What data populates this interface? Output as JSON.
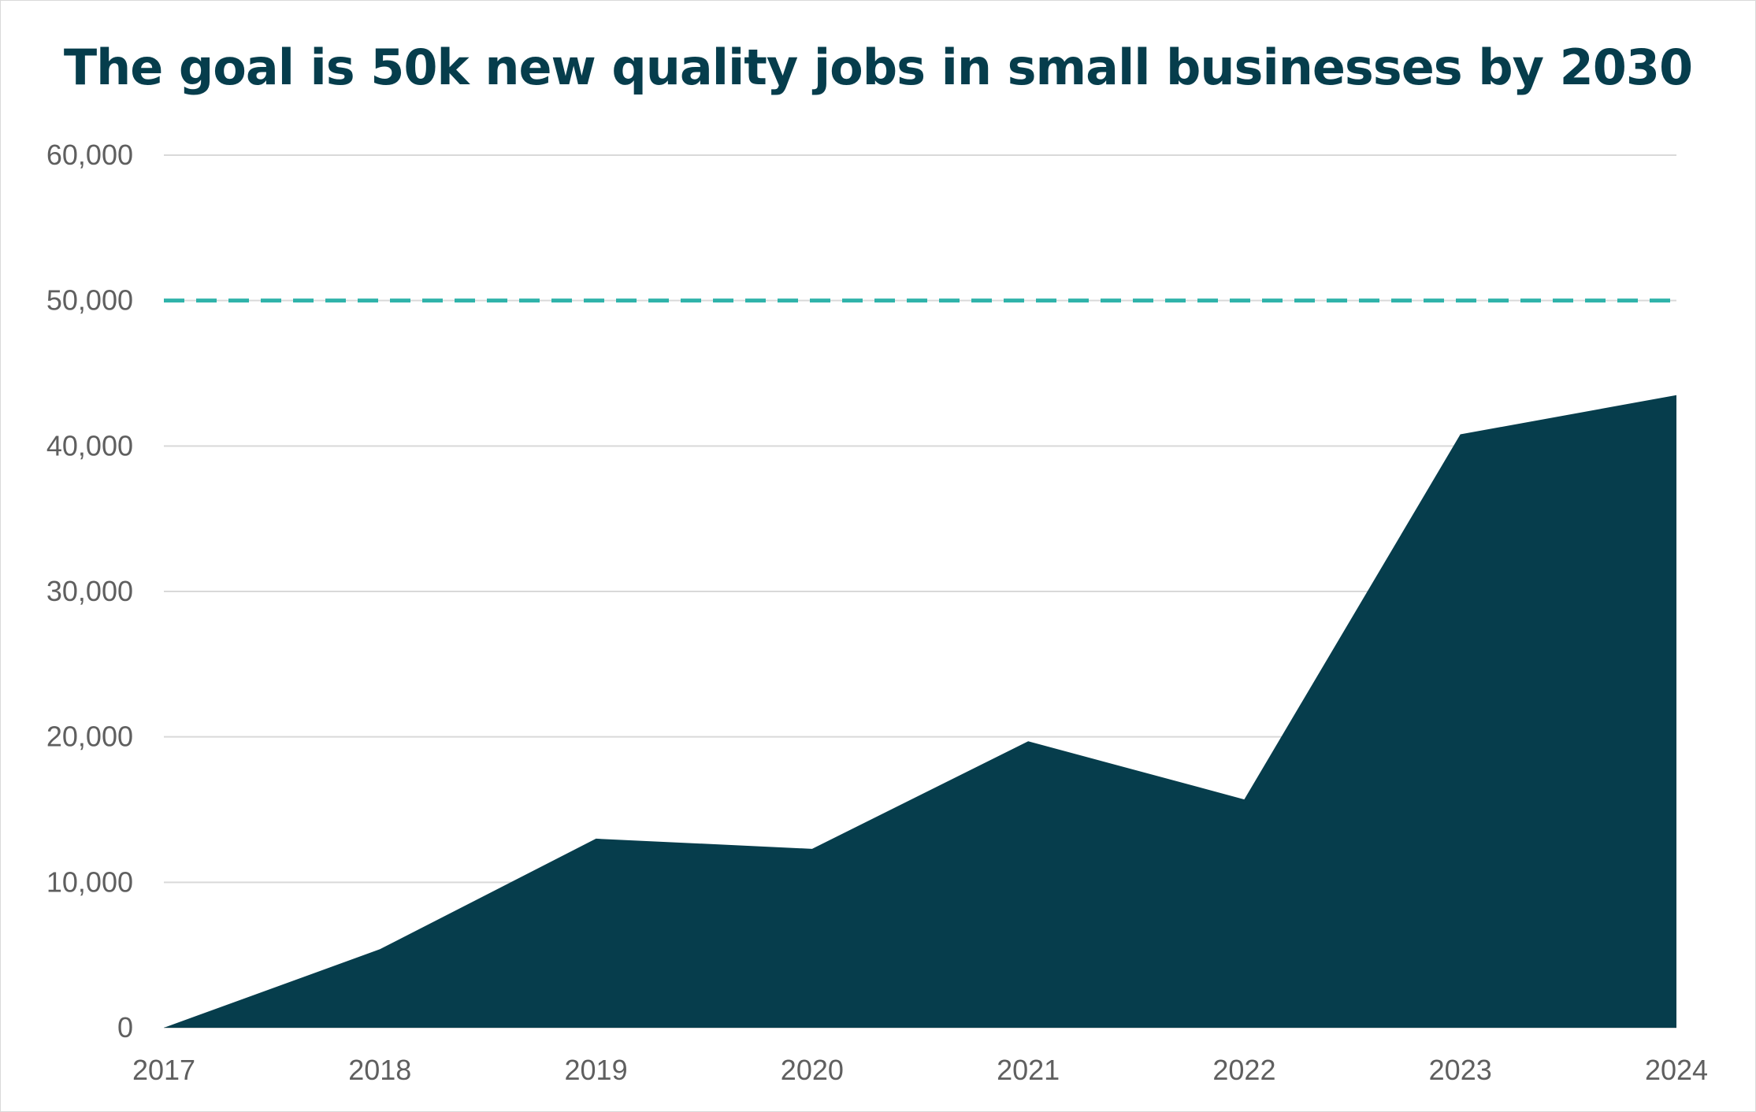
{
  "chart_data": {
    "type": "area",
    "title": "The goal is 50k new quality jobs in small businesses by 2030",
    "xlabel": "",
    "ylabel": "",
    "x": [
      "2017",
      "2018",
      "2019",
      "2020",
      "2021",
      "2022",
      "2023",
      "2024"
    ],
    "series": [
      {
        "values": [
          0,
          5400,
          13000,
          12300,
          19700,
          15700,
          40800,
          43500
        ],
        "color": "#063d4c"
      }
    ],
    "target_line": {
      "value": 50000,
      "color": "#2fb3aa",
      "style": "dashed"
    },
    "ylim": [
      0,
      60000
    ],
    "yticks": [
      0,
      10000,
      20000,
      30000,
      40000,
      50000,
      60000
    ],
    "ytick_labels": [
      "0",
      "10,000",
      "20,000",
      "30,000",
      "40,000",
      "50,000",
      "60,000"
    ],
    "grid": true,
    "grid_color": "#d9d9d9",
    "legend": "none"
  }
}
